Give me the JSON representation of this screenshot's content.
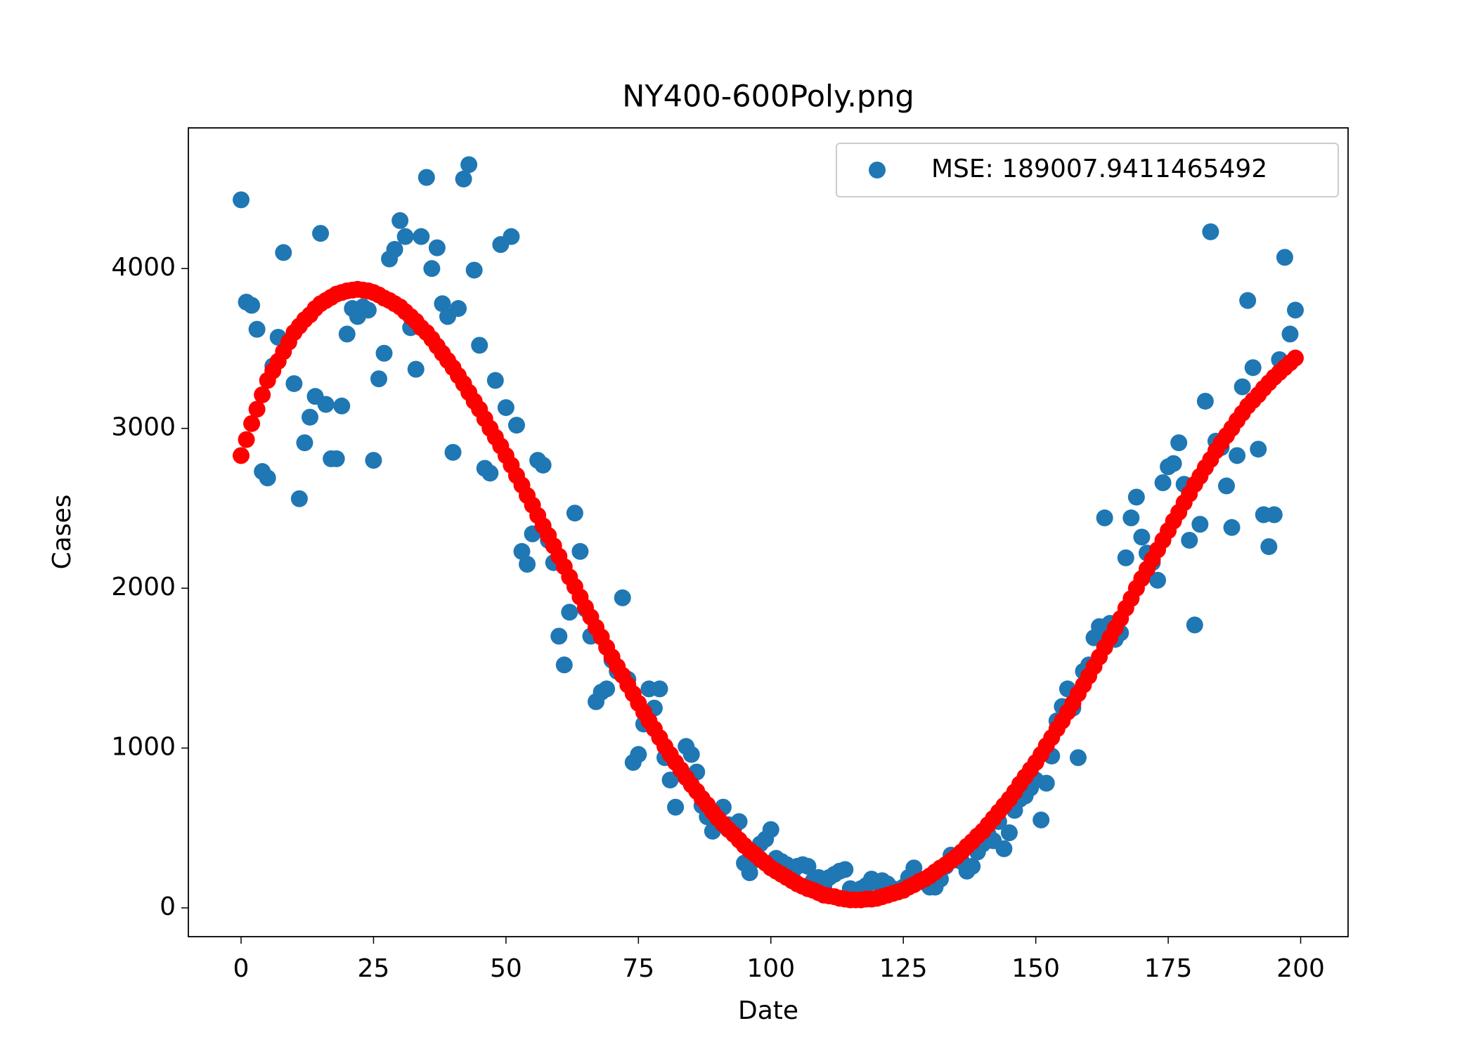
{
  "chart_data": {
    "type": "scatter",
    "title": "NY400-600Poly.png",
    "x_label": "Date",
    "y_label": "Cases",
    "x": [
      0,
      1,
      2,
      3,
      4,
      5,
      6,
      7,
      8,
      9,
      10,
      11,
      12,
      13,
      14,
      15,
      16,
      17,
      18,
      19,
      20,
      21,
      22,
      23,
      24,
      25,
      26,
      27,
      28,
      29,
      30,
      31,
      32,
      33,
      34,
      35,
      36,
      37,
      38,
      39,
      40,
      41,
      42,
      43,
      44,
      45,
      46,
      47,
      48,
      49,
      50,
      51,
      52,
      53,
      54,
      55,
      56,
      57,
      58,
      59,
      60,
      61,
      62,
      63,
      64,
      65,
      66,
      67,
      68,
      69,
      70,
      71,
      72,
      73,
      74,
      75,
      76,
      77,
      78,
      79,
      80,
      81,
      82,
      83,
      84,
      85,
      86,
      87,
      88,
      89,
      90,
      91,
      92,
      93,
      94,
      95,
      96,
      97,
      98,
      99,
      100,
      101,
      102,
      103,
      104,
      105,
      106,
      107,
      108,
      109,
      110,
      111,
      112,
      113,
      114,
      115,
      116,
      117,
      118,
      119,
      120,
      121,
      122,
      123,
      124,
      125,
      126,
      127,
      128,
      129,
      130,
      131,
      132,
      133,
      134,
      135,
      136,
      137,
      138,
      139,
      140,
      141,
      142,
      143,
      144,
      145,
      146,
      147,
      148,
      149,
      150,
      151,
      152,
      153,
      154,
      155,
      156,
      157,
      158,
      159,
      160,
      161,
      162,
      163,
      164,
      165,
      166,
      167,
      168,
      169,
      170,
      171,
      172,
      173,
      174,
      175,
      176,
      177,
      178,
      179,
      180,
      181,
      182,
      183,
      184,
      185,
      186,
      187,
      188,
      189,
      190,
      191,
      192,
      193,
      194,
      195,
      196,
      197,
      198,
      199
    ],
    "series": [
      {
        "name": "MSE: 189007.9411465492",
        "color": "#1f77b4",
        "values": [
          4430,
          3790,
          3770,
          3620,
          2730,
          2690,
          3390,
          3570,
          4100,
          3540,
          3280,
          2560,
          2910,
          3070,
          3200,
          4220,
          3150,
          2810,
          2810,
          3140,
          3590,
          3750,
          3700,
          3760,
          3740,
          2800,
          3310,
          3470,
          4060,
          4120,
          4300,
          4200,
          3630,
          3370,
          4200,
          4570,
          4000,
          4130,
          3780,
          3700,
          2850,
          3750,
          4560,
          4650,
          3990,
          3520,
          2750,
          2720,
          3300,
          4150,
          3130,
          4200,
          3020,
          2230,
          2150,
          2340,
          2800,
          2770,
          2300,
          2160,
          1700,
          1520,
          1850,
          2470,
          2230,
          1870,
          1700,
          1290,
          1350,
          1370,
          1550,
          1480,
          1940,
          1430,
          910,
          960,
          1150,
          1370,
          1250,
          1370,
          940,
          800,
          630,
          850,
          1010,
          960,
          850,
          640,
          570,
          480,
          580,
          630,
          520,
          500,
          540,
          280,
          220,
          300,
          400,
          430,
          490,
          310,
          290,
          270,
          200,
          260,
          270,
          260,
          170,
          190,
          140,
          190,
          210,
          230,
          240,
          120,
          90,
          120,
          140,
          180,
          160,
          170,
          150,
          120,
          100,
          130,
          190,
          250,
          180,
          160,
          130,
          130,
          180,
          260,
          330,
          300,
          290,
          230,
          260,
          350,
          400,
          460,
          420,
          540,
          370,
          470,
          610,
          680,
          700,
          750,
          800,
          550,
          780,
          950,
          1170,
          1260,
          1370,
          1250,
          940,
          1480,
          1520,
          1690,
          1760,
          2440,
          1780,
          1680,
          1720,
          2190,
          2440,
          2570,
          2320,
          2220,
          2160,
          2050,
          2660,
          2760,
          2780,
          2910,
          2650,
          2300,
          1770,
          2400,
          3170,
          4230,
          2920,
          2880,
          2640,
          2380,
          2830,
          3260,
          3800,
          3380,
          2870,
          2460,
          2260,
          2460,
          3430,
          4070,
          3590,
          3740
        ]
      },
      {
        "color": "#ff0000",
        "values": [
          2830,
          2930,
          3030,
          3120,
          3210,
          3300,
          3360,
          3420,
          3480,
          3540,
          3600,
          3640,
          3680,
          3710,
          3750,
          3780,
          3800,
          3820,
          3840,
          3850,
          3860,
          3865,
          3870,
          3865,
          3860,
          3850,
          3835,
          3815,
          3800,
          3780,
          3760,
          3730,
          3700,
          3670,
          3630,
          3600,
          3560,
          3515,
          3470,
          3425,
          3380,
          3330,
          3280,
          3225,
          3170,
          3120,
          3060,
          3000,
          2945,
          2890,
          2830,
          2770,
          2705,
          2645,
          2580,
          2520,
          2455,
          2390,
          2330,
          2265,
          2200,
          2135,
          2070,
          2010,
          1945,
          1880,
          1820,
          1755,
          1695,
          1630,
          1570,
          1510,
          1455,
          1395,
          1340,
          1280,
          1225,
          1170,
          1120,
          1065,
          1010,
          960,
          910,
          865,
          815,
          770,
          730,
          685,
          645,
          600,
          560,
          525,
          490,
          460,
          425,
          390,
          360,
          335,
          305,
          280,
          250,
          230,
          210,
          190,
          170,
          150,
          135,
          120,
          110,
          95,
          80,
          75,
          70,
          60,
          55,
          50,
          50,
          50,
          55,
          55,
          60,
          70,
          80,
          90,
          100,
          110,
          130,
          145,
          165,
          180,
          200,
          225,
          250,
          270,
          295,
          320,
          350,
          385,
          415,
          450,
          480,
          520,
          560,
          600,
          640,
          680,
          725,
          775,
          820,
          865,
          910,
          960,
          1015,
          1065,
          1120,
          1170,
          1225,
          1280,
          1340,
          1395,
          1450,
          1510,
          1570,
          1630,
          1690,
          1750,
          1810,
          1875,
          1935,
          2000,
          2060,
          2120,
          2180,
          2240,
          2300,
          2360,
          2420,
          2475,
          2535,
          2590,
          2650,
          2700,
          2755,
          2805,
          2860,
          2910,
          2955,
          3000,
          3050,
          3095,
          3140,
          3175,
          3210,
          3250,
          3285,
          3320,
          3350,
          3380,
          3410,
          3440
        ]
      }
    ],
    "xlim": [
      -9.95,
      208.95
    ],
    "ylim": [
      -180,
      4880
    ],
    "xticks": [
      0,
      25,
      50,
      75,
      100,
      125,
      150,
      175,
      200
    ],
    "yticks": [
      0,
      1000,
      2000,
      3000,
      4000
    ],
    "grid": false,
    "legend": "upper right"
  }
}
